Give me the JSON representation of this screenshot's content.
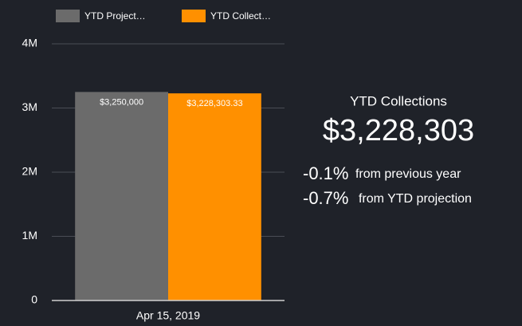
{
  "chart_data": {
    "type": "bar",
    "categories": [
      "Apr 15, 2019"
    ],
    "series": [
      {
        "name": "YTD Project…",
        "color": "#6b6b6b",
        "values": [
          3250000
        ],
        "value_labels": [
          "$3,250,000"
        ]
      },
      {
        "name": "YTD Collect…",
        "color": "#ff9000",
        "values": [
          3228303.33
        ],
        "value_labels": [
          "$3,228,303.33"
        ]
      }
    ],
    "ylim": [
      0,
      4000000
    ],
    "yticks": [
      0,
      {
        "value": 1000000,
        "label": "1M"
      },
      {
        "value": 2000000,
        "label": "2M"
      },
      {
        "value": 3000000,
        "label": "3M"
      },
      {
        "value": 4000000,
        "label": "4M"
      }
    ],
    "grid": true
  },
  "kpi": {
    "title": "YTD Collections",
    "value": "$3,228,303",
    "changes": [
      {
        "value": "-0.1%",
        "text": "from previous year"
      },
      {
        "value": "-0.7%",
        "text": "from YTD projection"
      }
    ]
  }
}
